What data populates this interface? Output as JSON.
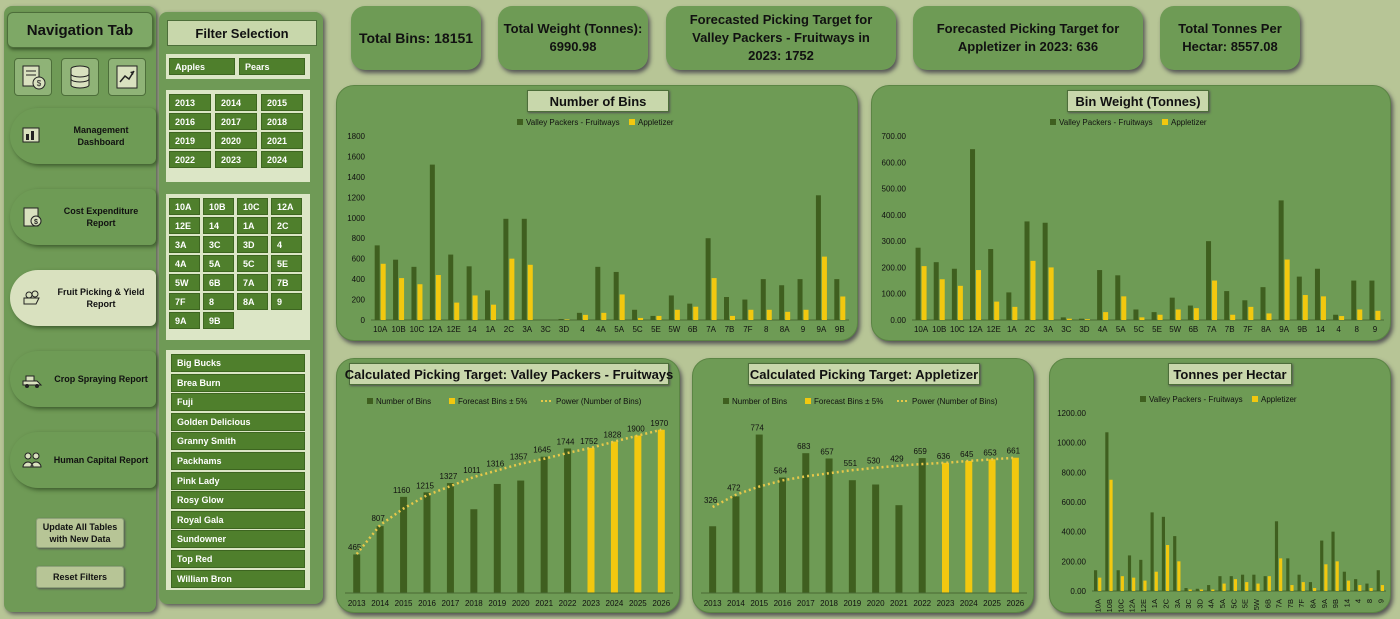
{
  "nav": {
    "title": "Navigation Tab",
    "icons": [
      "report-icon",
      "database-icon",
      "chart-icon"
    ],
    "buttons": [
      {
        "label": "Management Dashboard",
        "icon": "dashboard-icon",
        "active": false
      },
      {
        "label": "Cost Expenditure Report",
        "icon": "cost-icon",
        "active": false
      },
      {
        "label": "Fruit Picking & Yield Report",
        "icon": "fruit-icon",
        "active": true
      },
      {
        "label": "Crop Spraying Report",
        "icon": "spray-icon",
        "active": false
      },
      {
        "label": "Human Capital Report",
        "icon": "people-icon",
        "active": false
      }
    ],
    "update_label": "Update All Tables with New Data",
    "reset_label": "Reset Filters"
  },
  "filter": {
    "title": "Filter Selection",
    "fruit": [
      "Apples",
      "Pears"
    ],
    "years": [
      "2013",
      "2014",
      "2015",
      "2016",
      "2017",
      "2018",
      "2019",
      "2020",
      "2021",
      "2022",
      "2023",
      "2024"
    ],
    "blocks": [
      "10A",
      "10B",
      "10C",
      "12A",
      "12E",
      "14",
      "1A",
      "2C",
      "3A",
      "3C",
      "3D",
      "4",
      "4A",
      "5A",
      "5C",
      "5E",
      "5W",
      "6B",
      "7A",
      "7B",
      "7F",
      "8",
      "8A",
      "9",
      "9A",
      "9B"
    ],
    "varieties": [
      "Big Bucks",
      "Brea Burn",
      "Fuji",
      "Golden Delicious",
      "Granny Smith",
      "Packhams",
      "Pink Lady",
      "Rosy Glow",
      "Royal Gala",
      "Sundowner",
      "Top Red",
      "William Bron"
    ]
  },
  "kpis": {
    "total_bins": "Total Bins: 18151",
    "total_weight": "Total Weight (Tonnes): 6990.98",
    "target_vp": "Forecasted Picking Target for Valley Packers - Fruitways in 2023: 1752",
    "target_app": "Forecasted Picking Target for Appletizer in 2023: 636",
    "tonnes_per_hectar": "Total Tonnes Per Hectar: 8557.08"
  },
  "colors": {
    "green_series": "#3f5f1f",
    "yellow_series": "#f2c80f",
    "trend": "#e7c84a"
  },
  "chart_data": [
    {
      "type": "bar",
      "title": "Number of Bins",
      "categories": [
        "10A",
        "10B",
        "10C",
        "12A",
        "12E",
        "14",
        "1A",
        "2C",
        "3A",
        "3C",
        "3D",
        "4",
        "4A",
        "5A",
        "5C",
        "5E",
        "5W",
        "6B",
        "7A",
        "7B",
        "7F",
        "8",
        "8A",
        "9",
        "9A",
        "9B"
      ],
      "series": [
        {
          "name": "Valley Packers - Fruitways",
          "values": [
            730,
            590,
            520,
            1520,
            640,
            525,
            290,
            990,
            990,
            0,
            10,
            70,
            520,
            470,
            100,
            40,
            240,
            160,
            800,
            225,
            200,
            400,
            340,
            400,
            1220,
            400
          ]
        },
        {
          "name": "Appletizer",
          "values": [
            550,
            410,
            350,
            440,
            170,
            240,
            150,
            600,
            540,
            0,
            5,
            50,
            70,
            250,
            20,
            40,
            100,
            130,
            410,
            40,
            100,
            100,
            80,
            100,
            620,
            230
          ]
        }
      ],
      "ylim": [
        0,
        1800
      ],
      "yticks": [
        0,
        200,
        400,
        600,
        800,
        1000,
        1200,
        1400,
        1600,
        1800
      ],
      "legend": "top"
    },
    {
      "type": "bar",
      "title": "Bin Weight (Tonnes)",
      "categories": [
        "10A",
        "10B",
        "10C",
        "12A",
        "12E",
        "1A",
        "2C",
        "3A",
        "3C",
        "3D",
        "4A",
        "5A",
        "5C",
        "5E",
        "5W",
        "6B",
        "7A",
        "7B",
        "7F",
        "8A",
        "9A",
        "9B",
        "14",
        "4",
        "8",
        "9"
      ],
      "series": [
        {
          "name": "Valley Packers - Fruitways",
          "values": [
            275,
            220,
            195,
            650,
            270,
            105,
            375,
            370,
            10,
            5,
            190,
            170,
            40,
            30,
            85,
            55,
            300,
            110,
            75,
            125,
            455,
            165,
            195,
            20,
            150,
            150
          ]
        },
        {
          "name": "Appletizer",
          "values": [
            205,
            155,
            130,
            190,
            70,
            50,
            225,
            200,
            5,
            3,
            30,
            90,
            10,
            20,
            40,
            45,
            150,
            20,
            50,
            25,
            230,
            95,
            90,
            15,
            40,
            35
          ]
        }
      ],
      "ylim": [
        0,
        700
      ],
      "yticks": [
        "0.00",
        "100.00",
        "200.00",
        "300.00",
        "400.00",
        "500.00",
        "600.00",
        "700.00"
      ],
      "legend": "top"
    },
    {
      "type": "bar",
      "title": "Calculated Picking Target: Valley Packers - Fruitways",
      "categories": [
        "2013",
        "2014",
        "2015",
        "2016",
        "2017",
        "2018",
        "2019",
        "2020",
        "2021",
        "2022",
        "2023",
        "2024",
        "2025",
        "2026"
      ],
      "series": [
        {
          "name": "Number of Bins",
          "values": [
            465,
            807,
            1160,
            1215,
            1327,
            1011,
            1316,
            1357,
            1645,
            1744,
            null,
            null,
            null,
            null
          ]
        },
        {
          "name": "Forecast Bins ± 5%",
          "values": [
            null,
            null,
            null,
            null,
            null,
            null,
            null,
            null,
            null,
            null,
            1752,
            1828,
            1900,
            1970
          ]
        },
        {
          "name": "Power (Number of Bins)",
          "values": [
            470,
            820,
            1020,
            1180,
            1290,
            1400,
            1480,
            1560,
            1620,
            1690,
            1752,
            1828,
            1900,
            1970
          ]
        }
      ],
      "data_labels": [
        "465",
        "807",
        "1160",
        "1215",
        "1327",
        "1011",
        "1316",
        "1357",
        "1645",
        "1744",
        "1752",
        "1828",
        "1900",
        "1970"
      ],
      "ylim": [
        0,
        2100
      ],
      "legend": "top"
    },
    {
      "type": "bar",
      "title": "Calculated Picking Target: Appletizer",
      "categories": [
        "2013",
        "2014",
        "2015",
        "2016",
        "2017",
        "2018",
        "2019",
        "2020",
        "2021",
        "2022",
        "2023",
        "2024",
        "2025",
        "2026"
      ],
      "series": [
        {
          "name": "Number of Bins",
          "values": [
            326,
            472,
            774,
            564,
            683,
            657,
            551,
            530,
            429,
            659,
            null,
            null,
            null,
            null
          ]
        },
        {
          "name": "Forecast Bins ± 5%",
          "values": [
            null,
            null,
            null,
            null,
            null,
            null,
            null,
            null,
            null,
            null,
            636,
            645,
            653,
            661
          ]
        },
        {
          "name": "Power (Number of Bins)",
          "values": [
            420,
            480,
            520,
            550,
            570,
            585,
            600,
            612,
            622,
            630,
            636,
            645,
            653,
            661
          ]
        }
      ],
      "data_labels": [
        "326",
        "472",
        "774",
        "564",
        "683",
        "657",
        "551",
        "530",
        "429",
        "659",
        "636",
        "645",
        "653",
        "661"
      ],
      "ylim": [
        0,
        850
      ],
      "legend": "top"
    },
    {
      "type": "bar",
      "title": "Tonnes per Hectar",
      "categories": [
        "10A",
        "10B",
        "10C",
        "12A",
        "12E",
        "1A",
        "2C",
        "3A",
        "3C",
        "3D",
        "4A",
        "5A",
        "5C",
        "5E",
        "5W",
        "6B",
        "7A",
        "7B",
        "7F",
        "8A",
        "9A",
        "9B",
        "14",
        "4",
        "8",
        "9"
      ],
      "series": [
        {
          "name": "Valley Packers - Fruitways",
          "values": [
            140,
            1070,
            140,
            240,
            210,
            530,
            500,
            370,
            20,
            15,
            40,
            100,
            100,
            110,
            110,
            100,
            470,
            220,
            110,
            60,
            340,
            400,
            130,
            80,
            50,
            140
          ]
        },
        {
          "name": "Appletizer",
          "values": [
            90,
            750,
            100,
            90,
            70,
            130,
            310,
            200,
            10,
            10,
            10,
            50,
            80,
            60,
            50,
            100,
            220,
            40,
            60,
            20,
            180,
            200,
            70,
            40,
            20,
            40
          ]
        }
      ],
      "ylim": [
        0,
        1200
      ],
      "yticks": [
        "0.00",
        "200.00",
        "400.00",
        "600.00",
        "800.00",
        "1000.00",
        "1200.00"
      ],
      "legend": "top"
    }
  ]
}
